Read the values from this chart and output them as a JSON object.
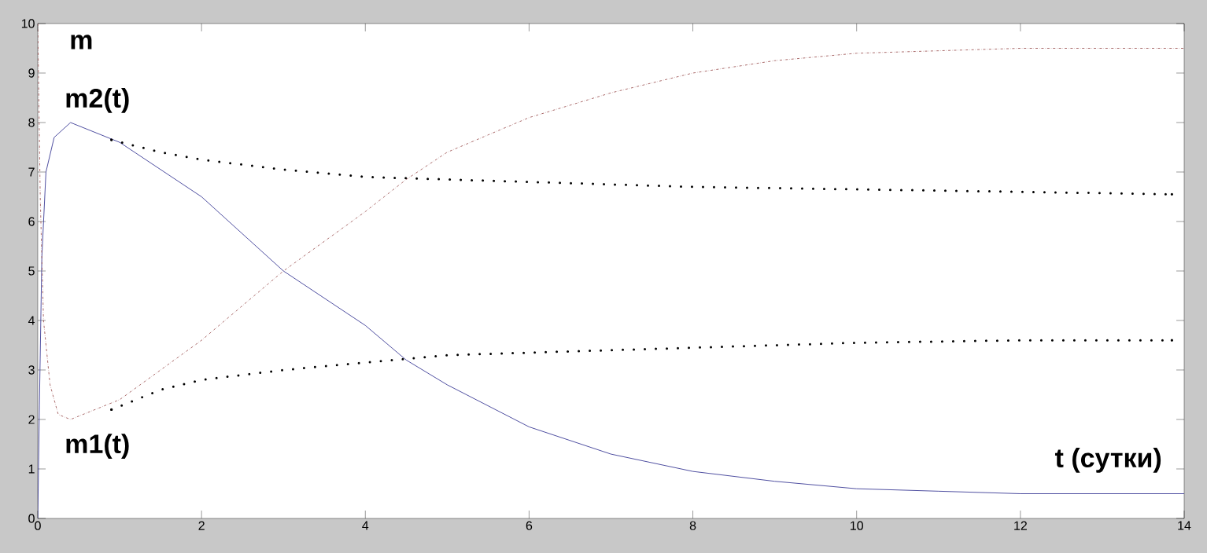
{
  "chart_data": {
    "type": "line",
    "xlabel": "t (сутки)",
    "ylabel": "m",
    "xlim": [
      0,
      14
    ],
    "ylim": [
      0,
      10
    ],
    "xticks": [
      0,
      2,
      4,
      6,
      8,
      10,
      12,
      14
    ],
    "yticks": [
      0,
      1,
      2,
      3,
      4,
      5,
      6,
      7,
      8,
      9,
      10
    ],
    "grid": false,
    "legend": false,
    "marker": "none",
    "series": [
      {
        "name": "m2(t)",
        "color": "#3c3c96",
        "line_style": "solid",
        "x": [
          0,
          0.02,
          0.05,
          0.1,
          0.2,
          0.4,
          1,
          2,
          3,
          4,
          4.5,
          5,
          6,
          7,
          8,
          9,
          10,
          11,
          12,
          14
        ],
        "values": [
          0,
          2.3,
          5.3,
          7.0,
          7.7,
          8.0,
          7.6,
          6.5,
          5.0,
          3.9,
          3.2,
          2.7,
          1.85,
          1.3,
          0.95,
          0.75,
          0.6,
          0.55,
          0.5,
          0.5
        ]
      },
      {
        "name": "m1(t)",
        "color": "#a05a5a",
        "line_style": "dashdot",
        "x": [
          0,
          0.03,
          0.07,
          0.15,
          0.25,
          0.4,
          1,
          2,
          3,
          4,
          4.5,
          5,
          6,
          7,
          8,
          9,
          10,
          11,
          12,
          14
        ],
        "values": [
          10,
          6.5,
          4.0,
          2.7,
          2.1,
          2.0,
          2.4,
          3.6,
          5.0,
          6.2,
          6.85,
          7.4,
          8.1,
          8.6,
          9.0,
          9.25,
          9.4,
          9.45,
          9.5,
          9.5
        ]
      },
      {
        "color": "#000000",
        "line_style": "dotted",
        "x": [
          0.9,
          1.5,
          2,
          3,
          4,
          5,
          6,
          8,
          10,
          12,
          13.85
        ],
        "values": [
          7.65,
          7.4,
          7.25,
          7.05,
          6.9,
          6.85,
          6.8,
          6.7,
          6.65,
          6.6,
          6.55
        ]
      },
      {
        "color": "#000000",
        "line_style": "dotted",
        "x": [
          0.9,
          1.5,
          2,
          3,
          4,
          5,
          6,
          8,
          10,
          12,
          13.85
        ],
        "values": [
          2.2,
          2.6,
          2.8,
          3.0,
          3.15,
          3.3,
          3.35,
          3.45,
          3.55,
          3.6,
          3.6
        ]
      }
    ]
  }
}
